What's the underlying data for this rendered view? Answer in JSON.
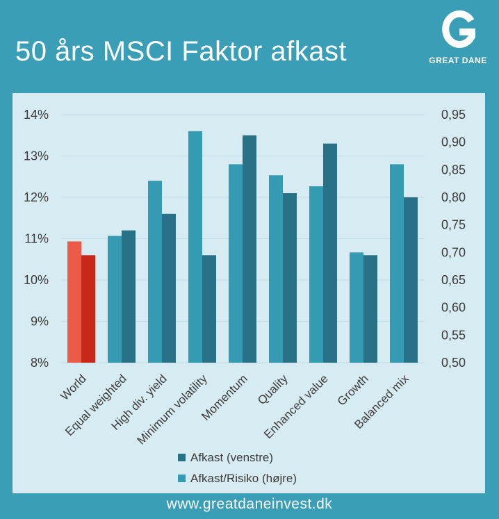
{
  "header": {
    "title": "50 års MSCI Faktor afkast",
    "logo_letter": "G",
    "logo_text": "GREAT DANE"
  },
  "footer": {
    "url": "www.greatdaneinvest.dk"
  },
  "colors": {
    "background": "#3a9fb6",
    "panel": "#d7ecf2",
    "afkast": "#287186",
    "afkast_risiko": "#359bb2",
    "world_afkast": "#c8281a",
    "world_afkast_risiko": "#ec5a48"
  },
  "chart_data": {
    "type": "bar",
    "categories": [
      "World",
      "Equal weighted",
      "High div. yield",
      "Minimum volatility",
      "Momentum",
      "Quality",
      "Enhanced value",
      "Growth",
      "Balanced mix"
    ],
    "series": [
      {
        "name": "Afkast (venstre)",
        "axis": "left",
        "values": [
          10.6,
          11.2,
          11.6,
          10.6,
          13.5,
          12.1,
          13.3,
          10.6,
          12.0
        ]
      },
      {
        "name": "Afkast/Risiko (højre)",
        "axis": "right",
        "values": [
          0.72,
          0.73,
          0.83,
          0.92,
          0.86,
          0.84,
          0.82,
          0.7,
          0.86
        ]
      }
    ],
    "left_axis": {
      "ylim": [
        8,
        14
      ],
      "ticks": [
        "8%",
        "9%",
        "10%",
        "11%",
        "12%",
        "13%",
        "14%"
      ]
    },
    "right_axis": {
      "ylim": [
        0.5,
        0.95
      ],
      "ticks": [
        "0,50",
        "0,55",
        "0,60",
        "0,65",
        "0,70",
        "0,75",
        "0,80",
        "0,85",
        "0,90",
        "0,95"
      ]
    },
    "grid": true,
    "legend_position": "bottom-center",
    "highlight_category": "World"
  }
}
